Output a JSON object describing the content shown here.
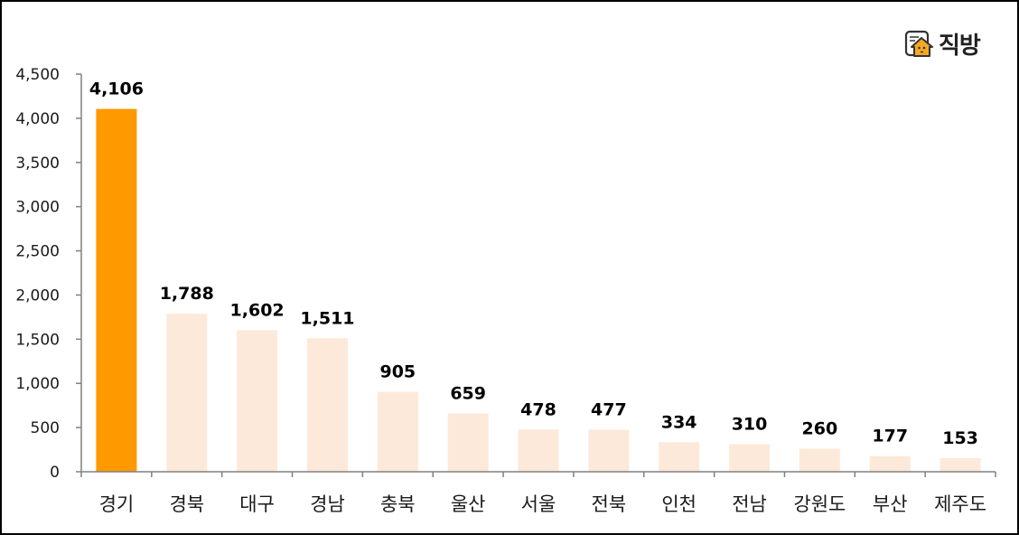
{
  "logo": {
    "text": "직방",
    "icon": "house-icon",
    "accent": "#F7A823"
  },
  "colors": {
    "highlight": "#FF9900",
    "bar": "#FDE9D9",
    "axis": "#808080"
  },
  "chart_data": {
    "type": "bar",
    "title": "",
    "xlabel": "",
    "ylabel": "",
    "ylim": [
      0,
      4500
    ],
    "yticks": [
      0,
      500,
      1000,
      1500,
      2000,
      2500,
      3000,
      3500,
      4000,
      4500
    ],
    "ytick_labels": [
      "0",
      "500",
      "1,000",
      "1,500",
      "2,000",
      "2,500",
      "3,000",
      "3,500",
      "4,000",
      "4,500"
    ],
    "grid": false,
    "legend": null,
    "categories": [
      "경기",
      "경북",
      "대구",
      "경남",
      "충북",
      "울산",
      "서울",
      "전북",
      "인천",
      "전남",
      "강원도",
      "부산",
      "제주도"
    ],
    "values": [
      4106,
      1788,
      1602,
      1511,
      905,
      659,
      478,
      477,
      334,
      310,
      260,
      177,
      153
    ],
    "value_labels": [
      "4,106",
      "1,788",
      "1,602",
      "1,511",
      "905",
      "659",
      "478",
      "477",
      "334",
      "310",
      "260",
      "177",
      "153"
    ],
    "highlighted_index": 0
  }
}
